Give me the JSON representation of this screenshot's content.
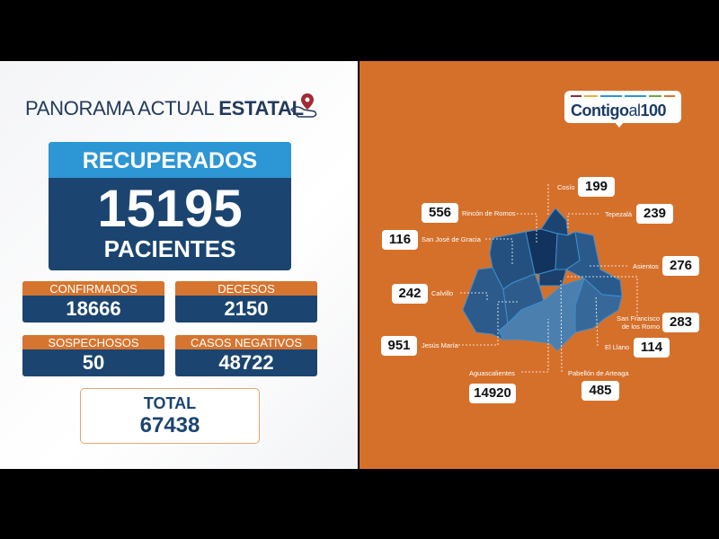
{
  "header": {
    "title_light": "PANORAMA ACTUAL",
    "title_bold": "ESTATAL"
  },
  "recuperados": {
    "label": "RECUPERADOS",
    "value": "15195",
    "unit": "PACIENTES"
  },
  "stats": [
    {
      "label": "CONFIRMADOS",
      "value": "18666"
    },
    {
      "label": "DECESOS",
      "value": "2150"
    },
    {
      "label": "SOSPECHOSOS",
      "value": "50"
    },
    {
      "label": "CASOS NEGATIVOS",
      "value": "48722"
    }
  ],
  "total": {
    "label": "TOTAL",
    "value": "67438"
  },
  "logo": {
    "bold": "Contigo",
    "light": "al",
    "num": "100",
    "bar_colors": [
      "#8a2a3a",
      "#e0b43a",
      "#2d96d4",
      "#2d96d4",
      "#6aa84f",
      "#d6752f"
    ]
  },
  "colors": {
    "orange": "#d5702b",
    "navy": "#1b4570",
    "blue": "#2d96d4"
  },
  "municipios": [
    {
      "name": "Cosío",
      "value": "199"
    },
    {
      "name": "Rincón de Romos",
      "value": "556"
    },
    {
      "name": "Tepezalá",
      "value": "239"
    },
    {
      "name": "San José de Gracia",
      "value": "116"
    },
    {
      "name": "Asientos",
      "value": "276"
    },
    {
      "name": "Calvillo",
      "value": "242"
    },
    {
      "name": "San Francisco de los Romo",
      "value": "283"
    },
    {
      "name": "Jesús María",
      "value": "951"
    },
    {
      "name": "El Llano",
      "value": "114"
    },
    {
      "name": "Aguascalientes",
      "value": "14920"
    },
    {
      "name": "Pabellón de Arteaga",
      "value": "485"
    }
  ]
}
